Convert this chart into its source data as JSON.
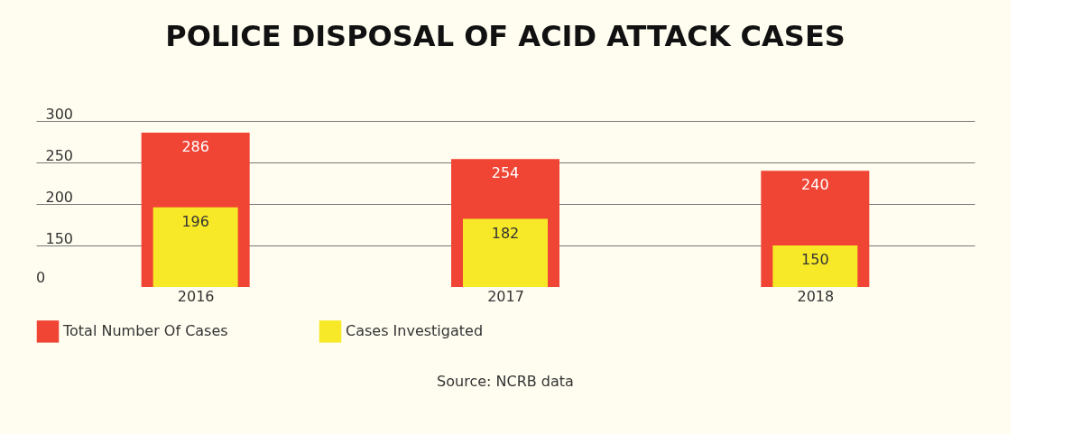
{
  "chart_data": {
    "type": "bar",
    "title": "POLICE DISPOSAL OF ACID ATTACK CASES",
    "categories": [
      "2016",
      "2017",
      "2018"
    ],
    "series": [
      {
        "name": "Total Number Of Cases",
        "color": "#f04434",
        "values": [
          286,
          254,
          240
        ]
      },
      {
        "name": "Cases Investigated",
        "color": "#f7e927",
        "values": [
          196,
          182,
          150
        ]
      }
    ],
    "ylim": [
      100,
      300
    ],
    "yticks": [
      150,
      200,
      250,
      300
    ],
    "grid": "y",
    "legend": "bottom",
    "data_labels": true,
    "annotations": [
      "0",
      "Source: NCRB data"
    ]
  }
}
